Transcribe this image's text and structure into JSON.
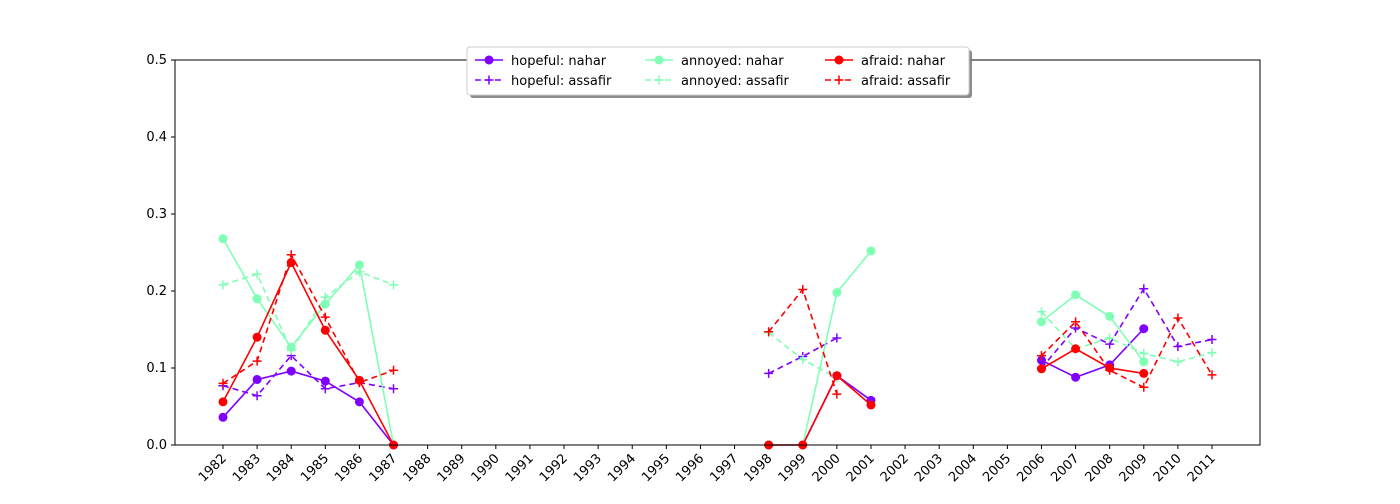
{
  "chart_data": {
    "type": "line",
    "title": "",
    "xlabel": "",
    "ylabel": "",
    "x": [
      1982,
      1983,
      1984,
      1985,
      1986,
      1987,
      1988,
      1989,
      1990,
      1991,
      1992,
      1993,
      1994,
      1995,
      1996,
      1997,
      1998,
      1999,
      2000,
      2001,
      2002,
      2003,
      2004,
      2005,
      2006,
      2007,
      2008,
      2009,
      2010,
      2011
    ],
    "x_tick_labels": [
      "1982",
      "1983",
      "1984",
      "1985",
      "1986",
      "1987",
      "1988",
      "1989",
      "1990",
      "1991",
      "1992",
      "1993",
      "1994",
      "1995",
      "1996",
      "1997",
      "1998",
      "1999",
      "2000",
      "2001",
      "2002",
      "2003",
      "2004",
      "2005",
      "2006",
      "2007",
      "2008",
      "2009",
      "2010",
      "2011"
    ],
    "ylim": [
      0,
      0.5
    ],
    "y_ticks": [
      0.0,
      0.1,
      0.2,
      0.3,
      0.4,
      0.5
    ],
    "y_tick_labels": [
      "0.0",
      "0.1",
      "0.2",
      "0.3",
      "0.4",
      "0.5"
    ],
    "grid": false,
    "legend_position": "top-center",
    "legend_columns": 3,
    "series": [
      {
        "name": "hopeful: nahar",
        "color": "#8000ff",
        "line_style": "solid",
        "marker": "circle",
        "values": [
          0.036,
          0.085,
          0.096,
          0.083,
          0.056,
          0.0,
          null,
          null,
          null,
          null,
          null,
          null,
          null,
          null,
          null,
          null,
          0.0,
          0.0,
          0.09,
          0.058,
          null,
          null,
          null,
          null,
          0.11,
          0.088,
          0.104,
          0.151,
          null,
          null
        ]
      },
      {
        "name": "hopeful: assafir",
        "color": "#8000ff",
        "line_style": "dashed",
        "marker": "plus",
        "values": [
          0.077,
          0.064,
          0.116,
          0.073,
          0.081,
          0.073,
          null,
          null,
          null,
          null,
          null,
          null,
          null,
          null,
          null,
          null,
          0.093,
          0.115,
          0.139,
          null,
          null,
          null,
          null,
          null,
          0.1,
          0.152,
          0.131,
          0.203,
          0.128,
          0.137
        ]
      },
      {
        "name": "annoyed: nahar",
        "color": "#80ffb4",
        "line_style": "solid",
        "marker": "circle",
        "values": [
          0.268,
          0.19,
          0.127,
          0.183,
          0.234,
          0.0,
          null,
          null,
          null,
          null,
          null,
          null,
          null,
          null,
          null,
          null,
          0.0,
          0.0,
          0.198,
          0.252,
          null,
          null,
          null,
          null,
          0.16,
          0.195,
          0.167,
          0.108,
          null,
          null
        ]
      },
      {
        "name": "annoyed: assafir",
        "color": "#80ffb4",
        "line_style": "dashed",
        "marker": "plus",
        "values": [
          0.208,
          0.222,
          0.123,
          0.192,
          0.225,
          0.208,
          null,
          null,
          null,
          null,
          null,
          null,
          null,
          null,
          null,
          null,
          0.146,
          0.111,
          0.087,
          null,
          null,
          null,
          null,
          null,
          0.173,
          0.125,
          0.139,
          0.119,
          0.108,
          0.12
        ]
      },
      {
        "name": "afraid: nahar",
        "color": "#ff0000",
        "line_style": "solid",
        "marker": "circle",
        "values": [
          0.056,
          0.14,
          0.237,
          0.149,
          0.084,
          0.0,
          null,
          null,
          null,
          null,
          null,
          null,
          null,
          null,
          null,
          null,
          0.0,
          0.0,
          0.09,
          0.052,
          null,
          null,
          null,
          null,
          0.099,
          0.125,
          0.1,
          0.093,
          null,
          null
        ]
      },
      {
        "name": "afraid: assafir",
        "color": "#ff0000",
        "line_style": "dashed",
        "marker": "plus",
        "values": [
          0.08,
          0.109,
          0.247,
          0.166,
          0.081,
          0.097,
          null,
          null,
          null,
          null,
          null,
          null,
          null,
          null,
          null,
          null,
          0.147,
          0.202,
          0.066,
          null,
          null,
          null,
          null,
          null,
          0.116,
          0.16,
          0.097,
          0.075,
          0.165,
          0.091
        ]
      }
    ]
  }
}
